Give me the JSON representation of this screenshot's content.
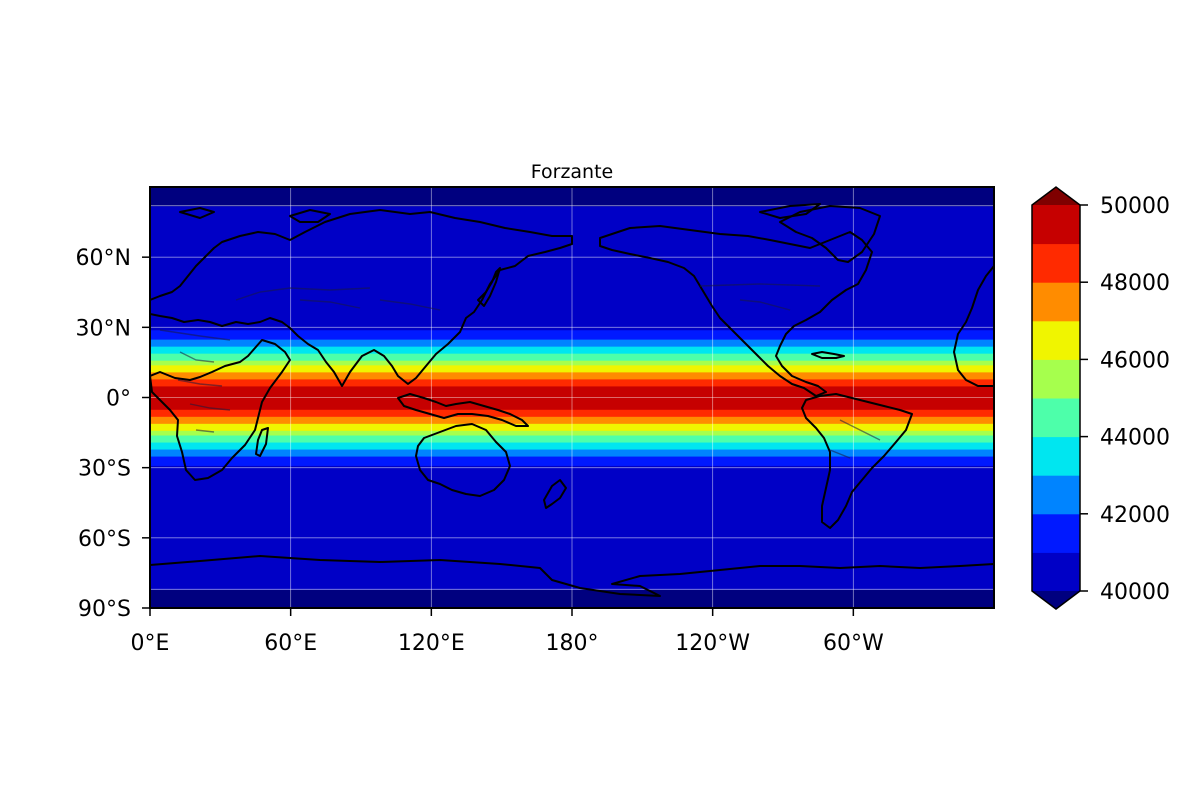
{
  "title": "Forzante",
  "map": {
    "projection": "PlateCarree",
    "central_longitude": 180,
    "lon_extent": [
      0,
      360
    ],
    "lat_extent": [
      -90,
      90
    ],
    "coastlines": true,
    "country_borders": true,
    "gridlines": true,
    "lon_ticks": [
      {
        "value": 0,
        "label": "0°E"
      },
      {
        "value": 60,
        "label": "60°E"
      },
      {
        "value": 120,
        "label": "120°E"
      },
      {
        "value": 180,
        "label": "180°"
      },
      {
        "value": 240,
        "label": "120°W"
      },
      {
        "value": 300,
        "label": "60°W"
      }
    ],
    "lat_ticks": [
      {
        "value": 60,
        "label": "60°N"
      },
      {
        "value": 30,
        "label": "30°N"
      },
      {
        "value": 0,
        "label": "0°"
      },
      {
        "value": -30,
        "label": "30°S"
      },
      {
        "value": -60,
        "label": "60°S"
      },
      {
        "value": -90,
        "label": "90°S"
      }
    ]
  },
  "colorbar": {
    "colormap": "jet",
    "levels": [
      40000,
      41000,
      42000,
      43000,
      44000,
      45000,
      46000,
      47000,
      48000,
      49000,
      50000
    ],
    "extend": "both",
    "tick_values": [
      40000,
      42000,
      44000,
      46000,
      48000,
      50000
    ],
    "tick_labels": [
      "40000",
      "42000",
      "44000",
      "46000",
      "48000",
      "50000"
    ],
    "under_color": "#00007f",
    "over_color": "#7f0000",
    "bin_colors": [
      "#0000c6",
      "#0019ff",
      "#0084ff",
      "#00e6f0",
      "#4dffaa",
      "#a6ff4d",
      "#f0f500",
      "#ff8c00",
      "#ff2a00",
      "#c60000"
    ]
  },
  "chart_data": {
    "type": "heatmap",
    "title": "Forzante",
    "variable_profile": "zonally uniform field, maximum at equator, decreasing with latitude",
    "lat_bands": [
      {
        "lat_range": [
          -90,
          -82
        ],
        "value_bin": "<40000"
      },
      {
        "lat_range": [
          -82,
          -32
        ],
        "value_bin": "40000-41000"
      },
      {
        "lat_range": [
          -32,
          -29
        ],
        "value_bin": "40000-41000"
      },
      {
        "lat_range": [
          -29,
          -25
        ],
        "value_bin": "41000-42000"
      },
      {
        "lat_range": [
          -25,
          -22
        ],
        "value_bin": "42000-43000"
      },
      {
        "lat_range": [
          -22,
          -19
        ],
        "value_bin": "43000-44000"
      },
      {
        "lat_range": [
          -19,
          -16
        ],
        "value_bin": "44000-45000"
      },
      {
        "lat_range": [
          -16,
          -14
        ],
        "value_bin": "45000-46000"
      },
      {
        "lat_range": [
          -14,
          -11
        ],
        "value_bin": "46000-47000"
      },
      {
        "lat_range": [
          -11,
          -8
        ],
        "value_bin": "47000-48000"
      },
      {
        "lat_range": [
          -8,
          -5
        ],
        "value_bin": "48000-49000"
      },
      {
        "lat_range": [
          -5,
          5
        ],
        "value_bin": "49000-50000"
      },
      {
        "lat_range": [
          5,
          8
        ],
        "value_bin": "48000-49000"
      },
      {
        "lat_range": [
          8,
          11
        ],
        "value_bin": "47000-48000"
      },
      {
        "lat_range": [
          11,
          14
        ],
        "value_bin": "46000-47000"
      },
      {
        "lat_range": [
          14,
          16
        ],
        "value_bin": "45000-46000"
      },
      {
        "lat_range": [
          16,
          19
        ],
        "value_bin": "44000-45000"
      },
      {
        "lat_range": [
          19,
          22
        ],
        "value_bin": "43000-44000"
      },
      {
        "lat_range": [
          22,
          25
        ],
        "value_bin": "42000-43000"
      },
      {
        "lat_range": [
          25,
          29
        ],
        "value_bin": "41000-42000"
      },
      {
        "lat_range": [
          29,
          82
        ],
        "value_bin": "40000-41000"
      },
      {
        "lat_range": [
          82,
          90
        ],
        "value_bin": "<40000"
      }
    ],
    "ylim": [
      -90,
      90
    ],
    "xlim": [
      0,
      360
    ],
    "colorbar_range": [
      40000,
      50000
    ]
  }
}
